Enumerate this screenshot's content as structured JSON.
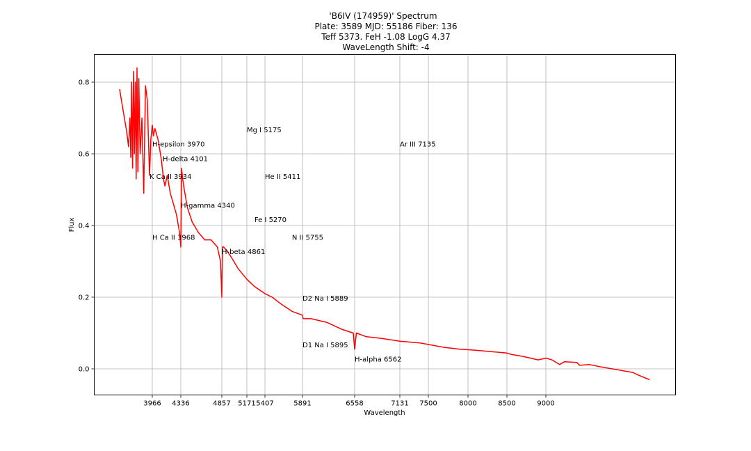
{
  "chart_data": {
    "type": "line",
    "title_lines": [
      "'B6IV (174959)' Spectrum",
      "Plate: 3589 MJD: 55186 Fiber: 136",
      "Teff 5373. FeH -1.08 LogG 4.37",
      "WaveLength Shift: -4"
    ],
    "xlabel": "Wavelength",
    "ylabel": "Flux",
    "x_ticks": [
      3966,
      4336,
      4857,
      5171,
      5407,
      5891,
      6558,
      7131,
      7500,
      8000,
      8500,
      9000
    ],
    "x_tick_labels": [
      "3966",
      "4336",
      "4857",
      "5171",
      "5407",
      "5891",
      "6558",
      "7131",
      "7500",
      "8000",
      "8500",
      "9000"
    ],
    "y_ticks": [
      0.0,
      0.2,
      0.4,
      0.6,
      0.8
    ],
    "y_tick_labels": [
      "0.0",
      "0.2",
      "0.4",
      "0.6",
      "0.8"
    ],
    "grid": true,
    "series_color": "#ff0000",
    "series": [
      {
        "x": [
          3600,
          3640,
          3680,
          3700,
          3715,
          3725,
          3735,
          3745,
          3755,
          3765,
          3775,
          3785,
          3795,
          3805,
          3815,
          3830,
          3850,
          3870,
          3890,
          3910,
          3935,
          3950,
          3966,
          3980,
          4000,
          4040,
          4080,
          4101,
          4110,
          4130,
          4160,
          4200,
          4240,
          4280,
          4320,
          4336,
          4345,
          4360,
          4380,
          4420,
          4480,
          4560,
          4640,
          4720,
          4800,
          4840,
          4857,
          4865,
          4880,
          4920,
          4980,
          5060,
          5171,
          5270,
          5407,
          5500,
          5620,
          5760,
          5891,
          5900,
          6000,
          6200,
          6400,
          6540,
          6558,
          6580,
          6700,
          6900,
          7131,
          7400,
          7700,
          7900,
          8100,
          8300,
          8500,
          8560,
          8620,
          8700,
          8800,
          8900,
          9000,
          9100,
          9220,
          9300,
          9500,
          9540,
          9700,
          9900,
          10400,
          10500,
          10670
        ],
        "y": [
          0.78,
          0.72,
          0.66,
          0.62,
          0.7,
          0.59,
          0.8,
          0.56,
          0.83,
          0.6,
          0.8,
          0.53,
          0.84,
          0.55,
          0.81,
          0.6,
          0.7,
          0.49,
          0.79,
          0.75,
          0.54,
          0.64,
          0.68,
          0.65,
          0.67,
          0.64,
          0.59,
          0.55,
          0.53,
          0.51,
          0.54,
          0.49,
          0.46,
          0.43,
          0.38,
          0.34,
          0.56,
          0.53,
          0.5,
          0.45,
          0.41,
          0.38,
          0.36,
          0.36,
          0.34,
          0.3,
          0.2,
          0.34,
          0.34,
          0.33,
          0.31,
          0.28,
          0.25,
          0.23,
          0.21,
          0.2,
          0.18,
          0.16,
          0.15,
          0.14,
          0.14,
          0.13,
          0.11,
          0.1,
          0.055,
          0.1,
          0.09,
          0.085,
          0.077,
          0.072,
          0.06,
          0.055,
          0.052,
          0.048,
          0.044,
          0.04,
          0.038,
          0.035,
          0.03,
          0.025,
          0.03,
          0.025,
          0.012,
          0.02,
          0.018,
          0.01,
          0.012,
          0.005,
          -0.01,
          -0.018,
          -0.03
        ]
      }
    ],
    "annotations": [
      {
        "text": "Mg I 5175",
        "x": 5171,
        "y": 0.66
      },
      {
        "text": "H-epsilon 3970",
        "x": 3966,
        "y": 0.62
      },
      {
        "text": "Ar III 7135",
        "x": 7131,
        "y": 0.62
      },
      {
        "text": "H-delta 4101",
        "x": 4101,
        "y": 0.58
      },
      {
        "text": "K Ca II 3934",
        "x": 3934,
        "y": 0.53
      },
      {
        "text": "He II 5411",
        "x": 5407,
        "y": 0.53
      },
      {
        "text": "H-gamma 4340",
        "x": 4336,
        "y": 0.45
      },
      {
        "text": "Fe I 5270",
        "x": 5270,
        "y": 0.41
      },
      {
        "text": "H Ca II 3968",
        "x": 3966,
        "y": 0.36
      },
      {
        "text": "N II 5755",
        "x": 5755,
        "y": 0.36
      },
      {
        "text": "H-beta 4861",
        "x": 4857,
        "y": 0.32
      },
      {
        "text": "D2 Na I 5889",
        "x": 5891,
        "y": 0.19
      },
      {
        "text": "D1 Na I 5895",
        "x": 5891,
        "y": 0.06
      },
      {
        "text": "H-alpha 6562",
        "x": 6558,
        "y": 0.02
      }
    ]
  }
}
